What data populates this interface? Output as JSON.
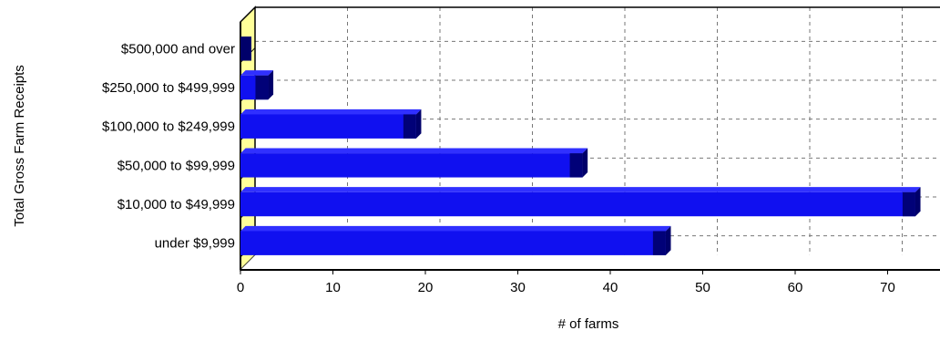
{
  "chart_data": {
    "type": "bar",
    "orientation": "horizontal",
    "style": "3d",
    "title": "",
    "xlabel": "# of farms",
    "ylabel": "Total Gross Farm Receipts",
    "categories": [
      "$500,000 and over",
      "$250,000 to $499,999",
      "$100,000 to $249,999",
      "$50,000 to $99,999",
      "$10,000 to $49,999",
      "under $9,999"
    ],
    "values": [
      0,
      3,
      19,
      37,
      73,
      46
    ],
    "xlim": [
      0,
      75
    ],
    "xticks": [
      0,
      10,
      20,
      30,
      40,
      50,
      60,
      70
    ],
    "grid": true,
    "colors": {
      "bar_front": "#1010f0",
      "bar_top": "#3030ff",
      "bar_side": "#00006a",
      "wall_edge": "#ffff99",
      "grid": "#777777",
      "axis": "#000000"
    }
  }
}
